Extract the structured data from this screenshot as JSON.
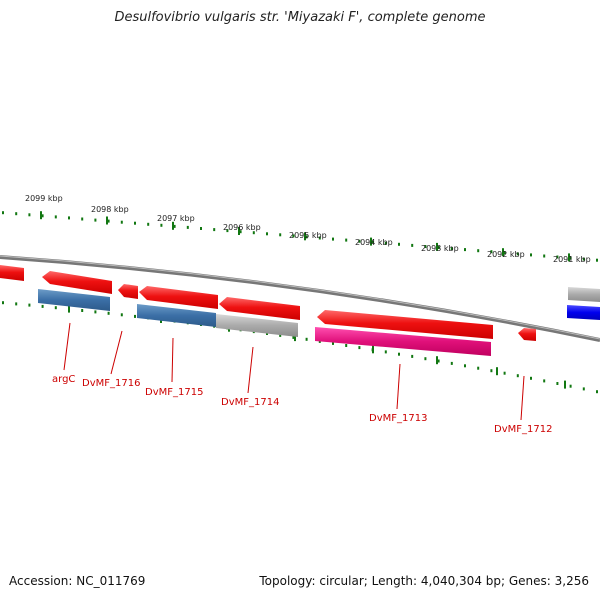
{
  "title": "Desulfovibrio vulgaris str. 'Miyazaki F', complete genome",
  "footer": {
    "accession": "Accession: NC_011769",
    "stats": "Topology: circular; Length: 4,040,304 bp; Genes: 3,256"
  },
  "ticks": [
    "2099 kbp",
    "2098 kbp",
    "2097 kbp",
    "2096 kbp",
    "2095 kbp",
    "2094 kbp",
    "2093 kbp",
    "2092 kbp",
    "2091 kbp"
  ],
  "genes": [
    "argC",
    "DvMF_1716",
    "DvMF_1715",
    "DvMF_1714",
    "DvMF_1713",
    "DvMF_1712"
  ],
  "colors": {
    "forward_cds": "#ee1111",
    "reverse_cds": "#3b6fa6",
    "gray_feature": "#aaaaaa",
    "pink_feature": "#e0107a",
    "blue_feature": "#0000ee",
    "tick_green": "#117711",
    "label_red": "#cc0000",
    "backbone": "#777777"
  }
}
